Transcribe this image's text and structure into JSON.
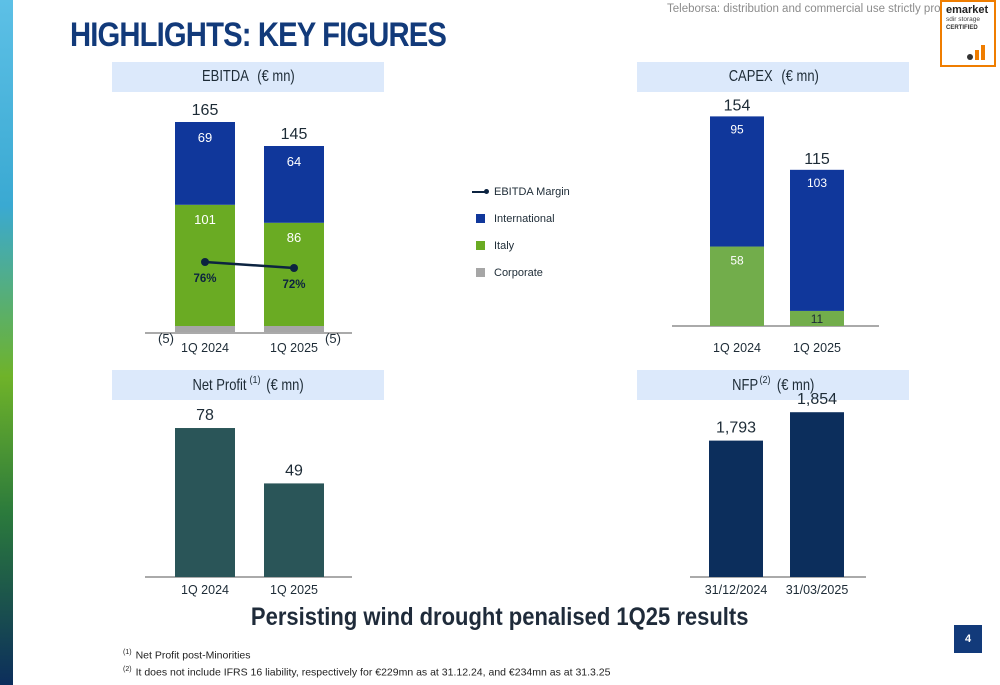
{
  "header": {
    "title": "HIGHLIGHTS: KEY FIGURES",
    "notice": "Teleborsa: distribution and commercial use strictly prohibited",
    "badge": {
      "line1": "emarket",
      "line2": "sdir storage",
      "line3": "CERTIFIED"
    }
  },
  "colors": {
    "international": "#10379b",
    "italy": "#6aab23",
    "italy_capex": "#72ad4b",
    "corporate": "#a6a6a6",
    "margin_line": "#0c2340",
    "net_profit": "#2a5558",
    "nfp": "#0c2e5c",
    "header_bg": "#dce9fb",
    "title": "#123a7a"
  },
  "panels": {
    "ebitda": {
      "title": "EBITDA",
      "unit": "(€ mn)"
    },
    "capex": {
      "title": "CAPEX",
      "unit": "(€ mn)"
    },
    "net_profit": {
      "title": "Net Profit",
      "sup": "(1)",
      "unit": "(€ mn)"
    },
    "nfp": {
      "title": "NFP",
      "sup": "(2)",
      "unit": "(€ mn)"
    }
  },
  "legend": [
    {
      "label": "EBITDA Margin",
      "kind": "line",
      "color": "#0c2340"
    },
    {
      "label": "International",
      "kind": "box",
      "color": "#10379b"
    },
    {
      "label": "Italy",
      "kind": "box",
      "color": "#6aab23"
    },
    {
      "label": "Corporate",
      "kind": "box",
      "color": "#a6a6a6"
    }
  ],
  "chart_data": [
    {
      "type": "bar",
      "stacked": true,
      "categories": [
        "1Q 2024",
        "1Q 2025"
      ],
      "series": [
        {
          "name": "Corporate",
          "values": [
            -5,
            -5
          ],
          "labels": [
            "(5)",
            "(5)"
          ]
        },
        {
          "name": "Italy",
          "values": [
            101,
            86
          ],
          "labels": [
            "101",
            "86"
          ]
        },
        {
          "name": "International",
          "values": [
            69,
            64
          ],
          "labels": [
            "69",
            "64"
          ]
        }
      ],
      "totals": [
        "165",
        "145"
      ],
      "line": {
        "name": "EBITDA Margin",
        "values": [
          76,
          72
        ],
        "labels": [
          "76%",
          "72%"
        ]
      },
      "title": "EBITDA",
      "unit": "(€ mn)"
    },
    {
      "type": "bar",
      "stacked": true,
      "categories": [
        "1Q 2024",
        "1Q 2025"
      ],
      "series": [
        {
          "name": "Italy",
          "values": [
            58,
            11
          ],
          "labels": [
            "58",
            "11"
          ]
        },
        {
          "name": "International",
          "values": [
            95,
            103
          ],
          "labels": [
            "95",
            "103"
          ]
        }
      ],
      "totals": [
        "154",
        "115"
      ],
      "title": "CAPEX",
      "unit": "(€ mn)"
    },
    {
      "type": "bar",
      "categories": [
        "1Q 2024",
        "1Q 2025"
      ],
      "values": [
        78,
        49
      ],
      "value_labels": [
        "78",
        "49"
      ],
      "title": "Net Profit",
      "unit": "(€ mn)"
    },
    {
      "type": "bar",
      "categories": [
        "31/12/2024",
        "31/03/2025"
      ],
      "values": [
        1793,
        1854
      ],
      "value_labels": [
        "1,793",
        "1,854"
      ],
      "title": "NFP",
      "unit": "(€ mn)"
    }
  ],
  "tagline": "Persisting wind drought penalised 1Q25 results",
  "footnotes": [
    {
      "mark": "(1)",
      "text": "Net Profit post-Minorities"
    },
    {
      "mark": "(2)",
      "text": "It does not include IFRS 16 liability, respectively for €229mn as at 31.12.24, and €234mn as at 31.3.25"
    }
  ],
  "page_number": "4"
}
